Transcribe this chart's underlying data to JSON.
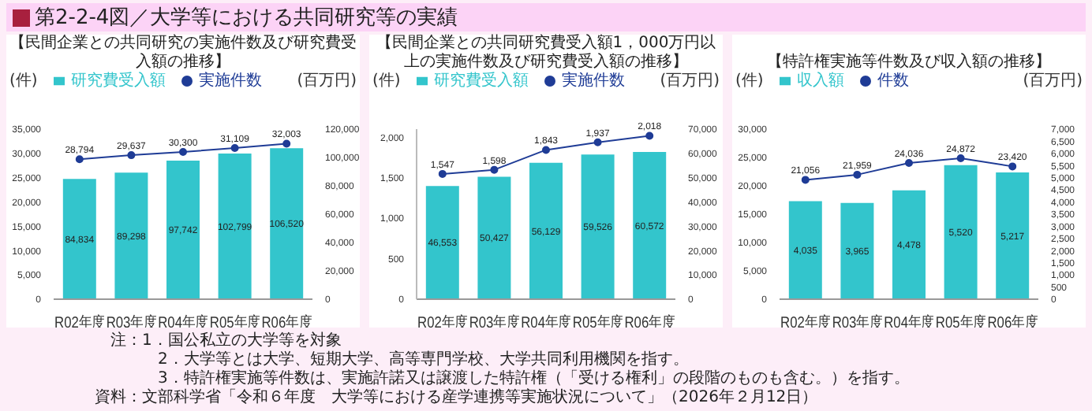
{
  "chart_data": [
    {
      "type": "other",
      "title": "第2-2-4図／大学等における共同研究等の実績",
      "annotations": [
        "注：1．国公私立の大学等を対象",
        "2．大学等とは大学、短期大学、高等専門学校、大学共同利用機関を指す。",
        "3．特許権実施等件数は、実施許諾又は譲渡した特許権（「受ける権利」の段階のものも含む。）を指す。",
        "資料：文部科学省「令和６年度　大学等における産学連携等実施状況について」（2026年２月12日）"
      ]
    },
    {
      "type": "bar",
      "title": "【民間企業との共同研究の実施件数及び研究費受入額の推移】",
      "ylabel": "(件)",
      "y2label": "(百万円)",
      "categories": [
        "R02年度",
        "R03年度",
        "R04年度",
        "R05年度",
        "R06年度"
      ],
      "ylim": [
        0,
        35000
      ],
      "yticks": [
        {
          "value": 0,
          "label": "0"
        },
        {
          "value": 5000,
          "label": "5,000"
        },
        {
          "value": 10000,
          "label": "10,000"
        },
        {
          "value": 15000,
          "label": "15,000"
        },
        {
          "value": 20000,
          "label": "20,000"
        },
        {
          "value": 25000,
          "label": "25,000"
        },
        {
          "value": 30000,
          "label": "30,000"
        },
        {
          "value": 35000,
          "label": "35,000"
        }
      ],
      "y2lim": [
        0,
        120000
      ],
      "y2ticks": [
        {
          "value": 0,
          "label": "0"
        },
        {
          "value": 20000,
          "label": "20,000"
        },
        {
          "value": 40000,
          "label": "40,000"
        },
        {
          "value": 60000,
          "label": "60,000"
        },
        {
          "value": 80000,
          "label": "80,000"
        },
        {
          "value": 100000,
          "label": "100,000"
        },
        {
          "value": 120000,
          "label": "120,000"
        }
      ],
      "legend": "top",
      "marker": "circle",
      "line_style": "solid",
      "series": [
        {
          "name": "研究費受入額",
          "type": "bar",
          "axis": "y2",
          "color": "#33c5cc",
          "values": [
            84834,
            89298,
            97742,
            102799,
            106520
          ],
          "value_labels": [
            "84,834",
            "89,298",
            "97,742",
            "102,799",
            "106,520"
          ]
        },
        {
          "name": "実施件数",
          "type": "line",
          "color": "#1f3c96",
          "values": [
            28794,
            29637,
            30300,
            31109,
            32003
          ],
          "value_labels": [
            "28,794",
            "29,637",
            "30,300",
            "31,109",
            "32,003"
          ]
        }
      ]
    },
    {
      "type": "bar",
      "title": "【民間企業との共同研究費受入額1，000万円以上の実施件数及び研究費受入額の推移】",
      "ylabel": "(件)",
      "y2label": "(百万円)",
      "categories": [
        "R02年度",
        "R03年度",
        "R04年度",
        "R05年度",
        "R06年度"
      ],
      "ylim": [
        0,
        2100
      ],
      "yticks": [
        {
          "value": 0,
          "label": "0"
        },
        500,
        {
          "value": 1000,
          "label": "1,000"
        },
        {
          "value": 1500,
          "label": "1,500"
        },
        {
          "value": 2000,
          "label": "2,000"
        }
      ],
      "y2lim": [
        0,
        70000
      ],
      "y2ticks": [
        {
          "value": 0,
          "label": "0"
        },
        {
          "value": 10000,
          "label": "10,000"
        },
        {
          "value": 20000,
          "label": "20,000"
        },
        {
          "value": 30000,
          "label": "30,000"
        },
        {
          "value": 40000,
          "label": "40,000"
        },
        {
          "value": 50000,
          "label": "50,000"
        },
        {
          "value": 60000,
          "label": "60,000"
        },
        {
          "value": 70000,
          "label": "70,000"
        }
      ],
      "legend": "top",
      "marker": "circle",
      "line_style": "solid",
      "series": [
        {
          "name": "研究費受入額",
          "type": "bar",
          "axis": "y2",
          "color": "#33c5cc",
          "values": [
            46553,
            50427,
            56129,
            59526,
            60572
          ],
          "value_labels": [
            "46,553",
            "50,427",
            "56,129",
            "59,526",
            "60,572"
          ]
        },
        {
          "name": "実施件数",
          "type": "line",
          "color": "#1f3c96",
          "values": [
            1547,
            1598,
            1843,
            1937,
            2018
          ],
          "value_labels": [
            "1,547",
            "1,598",
            "1,843",
            "1,937",
            "2,018"
          ]
        }
      ]
    },
    {
      "type": "bar",
      "title": "【特許権実施等件数及び収入額の推移】",
      "ylabel": "(件)",
      "y2label": "(百万円)",
      "categories": [
        "R02年度",
        "R03年度",
        "R04年度",
        "R05年度",
        "R06年度"
      ],
      "ylim": [
        0,
        30000
      ],
      "yticks": [
        {
          "value": 0,
          "label": "0"
        },
        {
          "value": 5000,
          "label": "5,000"
        },
        {
          "value": 10000,
          "label": "10,000"
        },
        {
          "value": 15000,
          "label": "15,000"
        },
        {
          "value": 20000,
          "label": "20,000"
        },
        {
          "value": 25000,
          "label": "25,000"
        },
        {
          "value": 30000,
          "label": "30,000"
        }
      ],
      "y2lim": [
        0,
        7000
      ],
      "y2ticks": [
        {
          "value": 0,
          "label": "0"
        },
        500,
        {
          "value": 1000,
          "label": "1,000"
        },
        {
          "value": 1500,
          "label": "1,500"
        },
        {
          "value": 2000,
          "label": "2,000"
        },
        {
          "value": 2500,
          "label": "2,500"
        },
        {
          "value": 3000,
          "label": "3,000"
        },
        {
          "value": 3500,
          "label": "3,500"
        },
        {
          "value": 4000,
          "label": "4,000"
        },
        {
          "value": 4500,
          "label": "4,500"
        },
        {
          "value": 5000,
          "label": "5,000"
        },
        {
          "value": 5500,
          "label": "5,500"
        },
        {
          "value": 6000,
          "label": "6,000"
        },
        {
          "value": 6500,
          "label": "6,500"
        },
        {
          "value": 7000,
          "label": "7,000"
        }
      ],
      "legend": "top",
      "marker": "circle",
      "line_style": "solid",
      "series": [
        {
          "name": "収入額",
          "type": "bar",
          "axis": "y2",
          "color": "#33c5cc",
          "values": [
            4035,
            3965,
            4478,
            5520,
            5217
          ],
          "value_labels": [
            "4,035",
            "3,965",
            "4,478",
            "5,520",
            "5,217"
          ]
        },
        {
          "name": "件数",
          "type": "line",
          "color": "#1f3c96",
          "values": [
            21056,
            21959,
            24036,
            24872,
            23420
          ],
          "value_labels": [
            "21,056",
            "21,959",
            "24,036",
            "24,872",
            "23,420"
          ]
        }
      ]
    }
  ]
}
